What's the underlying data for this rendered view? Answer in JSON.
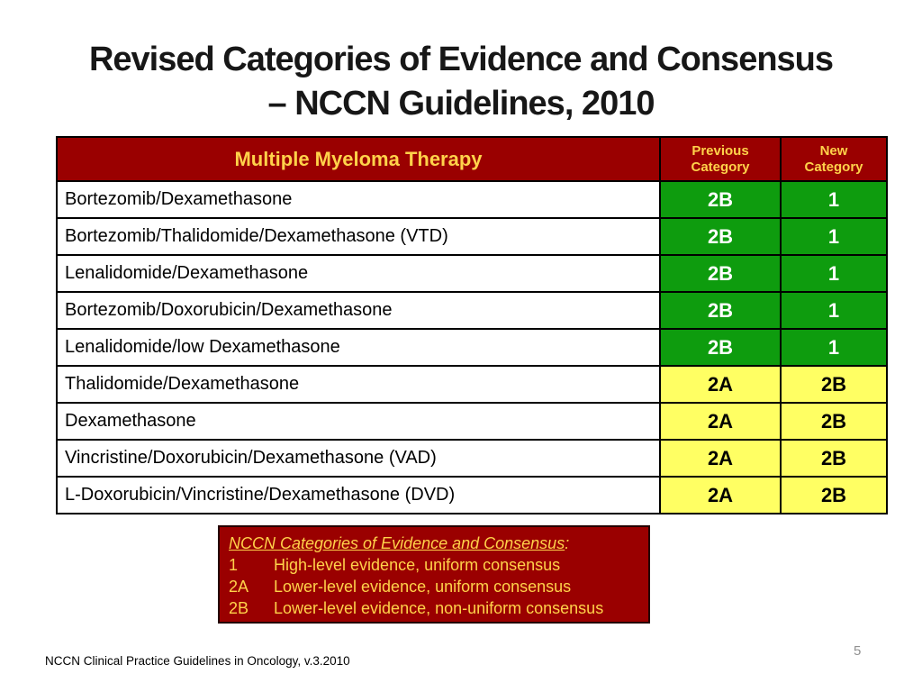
{
  "slide": {
    "title_line1": "Revised Categories of Evidence and Consensus",
    "title_line2": "– NCCN Guidelines, 2010",
    "footer": "NCCN Clinical Practice Guidelines in Oncology, v.3.2010",
    "page_number": "5"
  },
  "table": {
    "headers": {
      "therapy": "Multiple Myeloma Therapy",
      "previous": "Previous Category",
      "new": "New Category"
    },
    "rows": [
      {
        "therapy": "Bortezomib/Dexamethasone",
        "previous": "2B",
        "new": "1",
        "variant": "green"
      },
      {
        "therapy": "Bortezomib/Thalidomide/Dexamethasone (VTD)",
        "previous": "2B",
        "new": "1",
        "variant": "green"
      },
      {
        "therapy": "Lenalidomide/Dexamethasone",
        "previous": "2B",
        "new": "1",
        "variant": "green"
      },
      {
        "therapy": "Bortezomib/Doxorubicin/Dexamethasone",
        "previous": "2B",
        "new": "1",
        "variant": "green"
      },
      {
        "therapy": "Lenalidomide/low Dexamethasone",
        "previous": "2B",
        "new": "1",
        "variant": "green"
      },
      {
        "therapy": "Thalidomide/Dexamethasone",
        "previous": "2A",
        "new": "2B",
        "variant": "yellow"
      },
      {
        "therapy": "Dexamethasone",
        "previous": "2A",
        "new": "2B",
        "variant": "yellow"
      },
      {
        "therapy": "Vincristine/Doxorubicin/Dexamethasone (VAD)",
        "previous": "2A",
        "new": "2B",
        "variant": "yellow"
      },
      {
        "therapy": "L-Doxorubicin/Vincristine/Dexamethasone (DVD)",
        "previous": "2A",
        "new": "2B",
        "variant": "yellow"
      }
    ]
  },
  "legend": {
    "title": "NCCN Categories of Evidence and Consensus",
    "title_suffix": ":",
    "items": [
      {
        "code": "1",
        "description": "High-level evidence, uniform consensus"
      },
      {
        "code": "2A",
        "description": "Lower-level evidence, uniform consensus"
      },
      {
        "code": "2B",
        "description": "Lower-level evidence, non-uniform consensus"
      }
    ]
  },
  "colors": {
    "header_red": "#9a0000",
    "legend_red": "#9a0000",
    "upgraded_green": "#0e9c0e",
    "downgraded_yellow": "#ffff63",
    "gold_text": "#ffd24a",
    "title_text": "#171717",
    "page_number_gray": "#909090"
  }
}
